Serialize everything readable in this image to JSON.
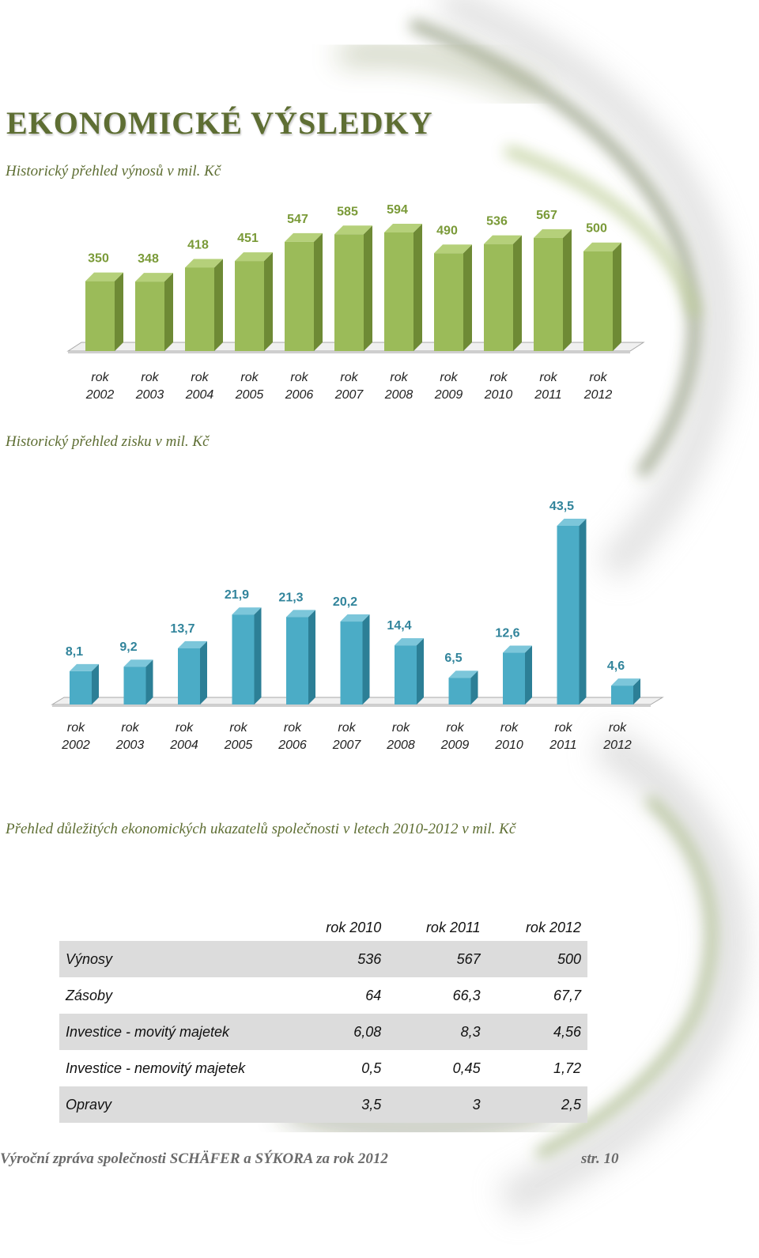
{
  "page": {
    "title": "EKONOMICKÉ VÝSLEDKY",
    "footer_left": "Výroční zpráva společnosti SCHÄFER a SÝKORA za rok 2012",
    "footer_right": "str. 10"
  },
  "sections": {
    "revenue_title": "Historický přehled výnosů v mil. Kč",
    "profit_title": "Historický přehled zisku v mil. Kč",
    "indicators_title": "Přehled důležitých ekonomických ukazatelů společnosti v letech 2010-2012 v mil. Kč"
  },
  "chart_data": [
    {
      "type": "bar",
      "categories": [
        "rok 2002",
        "rok 2003",
        "rok 2004",
        "rok 2005",
        "rok 2006",
        "rok 2007",
        "rok 2008",
        "rok 2009",
        "rok 2010",
        "rok 2011",
        "rok 2012"
      ],
      "values": [
        350,
        348,
        418,
        451,
        547,
        585,
        594,
        490,
        536,
        567,
        500
      ],
      "value_labels": [
        "350",
        "348",
        "418",
        "451",
        "547",
        "585",
        "594",
        "490",
        "536",
        "567",
        "500"
      ],
      "title": "Historický přehled výnosů v mil. Kč",
      "colors": {
        "front": "#9bbb59",
        "side": "#6e8a35",
        "top": "#b5d07a",
        "label": "#7a9a38"
      }
    },
    {
      "type": "bar",
      "categories": [
        "rok 2002",
        "rok 2003",
        "rok 2004",
        "rok 2005",
        "rok 2006",
        "rok 2007",
        "rok 2008",
        "rok 2009",
        "rok 2010",
        "rok 2011",
        "rok 2012"
      ],
      "values": [
        8.1,
        9.2,
        13.7,
        21.9,
        21.3,
        20.2,
        14.4,
        6.5,
        12.6,
        43.5,
        4.6
      ],
      "value_labels": [
        "8,1",
        "9,2",
        "13,7",
        "21,9",
        "21,3",
        "20,2",
        "14,4",
        "6,5",
        "12,6",
        "43,5",
        "4,6"
      ],
      "title": "Historický přehled zisku v mil. Kč",
      "colors": {
        "front": "#4bacc6",
        "side": "#2c7f96",
        "top": "#7cc6da",
        "label": "#31849b"
      }
    }
  ],
  "indicators_table": {
    "headers": [
      "",
      "rok 2010",
      "rok 2011",
      "rok 2012"
    ],
    "rows": [
      {
        "label": "Výnosy",
        "values": [
          "536",
          "567",
          "500"
        ]
      },
      {
        "label": "Zásoby",
        "values": [
          "64",
          "66,3",
          "67,7"
        ]
      },
      {
        "label": "Investice - movitý majetek",
        "values": [
          "6,08",
          "8,3",
          "4,56"
        ]
      },
      {
        "label": "Investice - nemovitý majetek",
        "values": [
          "0,5",
          "0,45",
          "1,72"
        ]
      },
      {
        "label": "Opravy",
        "values": [
          "3,5",
          "3",
          "2,5"
        ]
      }
    ]
  }
}
